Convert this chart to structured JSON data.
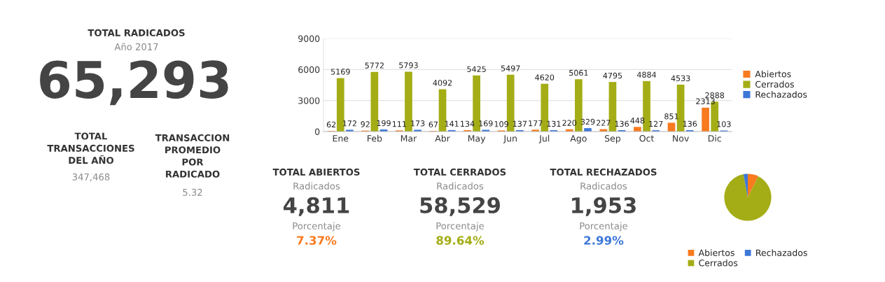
{
  "chart_data": [
    {
      "type": "other",
      "title": "TOTAL RADICADOS",
      "subtitle": "Año 2017",
      "annotations": [
        "65,293",
        "TOTAL\nTRANSACCIONES\nDEL AÑO",
        "347,468",
        "TRANSACCION\nPROMEDIO\nPOR\nRADICADO",
        "5.32"
      ]
    },
    {
      "type": "bar",
      "categories": [
        "Ene",
        "Feb",
        "Mar",
        "Abr",
        "May",
        "Jun",
        "Jul",
        "Ago",
        "Sep",
        "Oct",
        "Nov",
        "Dic"
      ],
      "series": [
        {
          "name": "Abiertos",
          "color": "#f97a1f",
          "values": [
            62,
            92,
            111,
            67,
            134,
            109,
            177,
            220,
            227,
            448,
            851,
            2313
          ]
        },
        {
          "name": "Cerrados",
          "color": "#a4ad15",
          "values": [
            5169,
            5772,
            5793,
            4092,
            5425,
            5497,
            4620,
            5061,
            4795,
            4884,
            4533,
            2888
          ]
        },
        {
          "name": "Rechazados",
          "color": "#3d78d8",
          "values": [
            172,
            199,
            173,
            141,
            169,
            137,
            131,
            329,
            136,
            127,
            136,
            103
          ]
        }
      ],
      "ylim": [
        0,
        9000
      ],
      "yticks": [
        0,
        3000,
        6000,
        9000
      ],
      "grid": "y",
      "legend": "right",
      "data_labels": true
    },
    {
      "type": "other",
      "title": "TOTAL ABIERTOS",
      "annotations": [
        "Radicados",
        "4,811",
        "Porcentaje",
        "7.37%"
      ],
      "color": "#f97a1f"
    },
    {
      "type": "other",
      "title": "TOTAL CERRADOS",
      "annotations": [
        "Radicados",
        "58,529",
        "Porcentaje",
        "89.64%"
      ],
      "color": "#a4ad15"
    },
    {
      "type": "other",
      "title": "TOTAL RECHAZADOS",
      "annotations": [
        "Radicados",
        "1,953",
        "Porcentaje",
        "2.99%"
      ],
      "color": "#3d78d8"
    },
    {
      "type": "pie",
      "categories": [
        "Abiertos",
        "Cerrados",
        "Rechazados"
      ],
      "values": [
        7.37,
        89.64,
        2.99
      ],
      "colors": [
        "#f97a1f",
        "#a4ad15",
        "#3d78d8"
      ],
      "legend": "bottom"
    }
  ]
}
